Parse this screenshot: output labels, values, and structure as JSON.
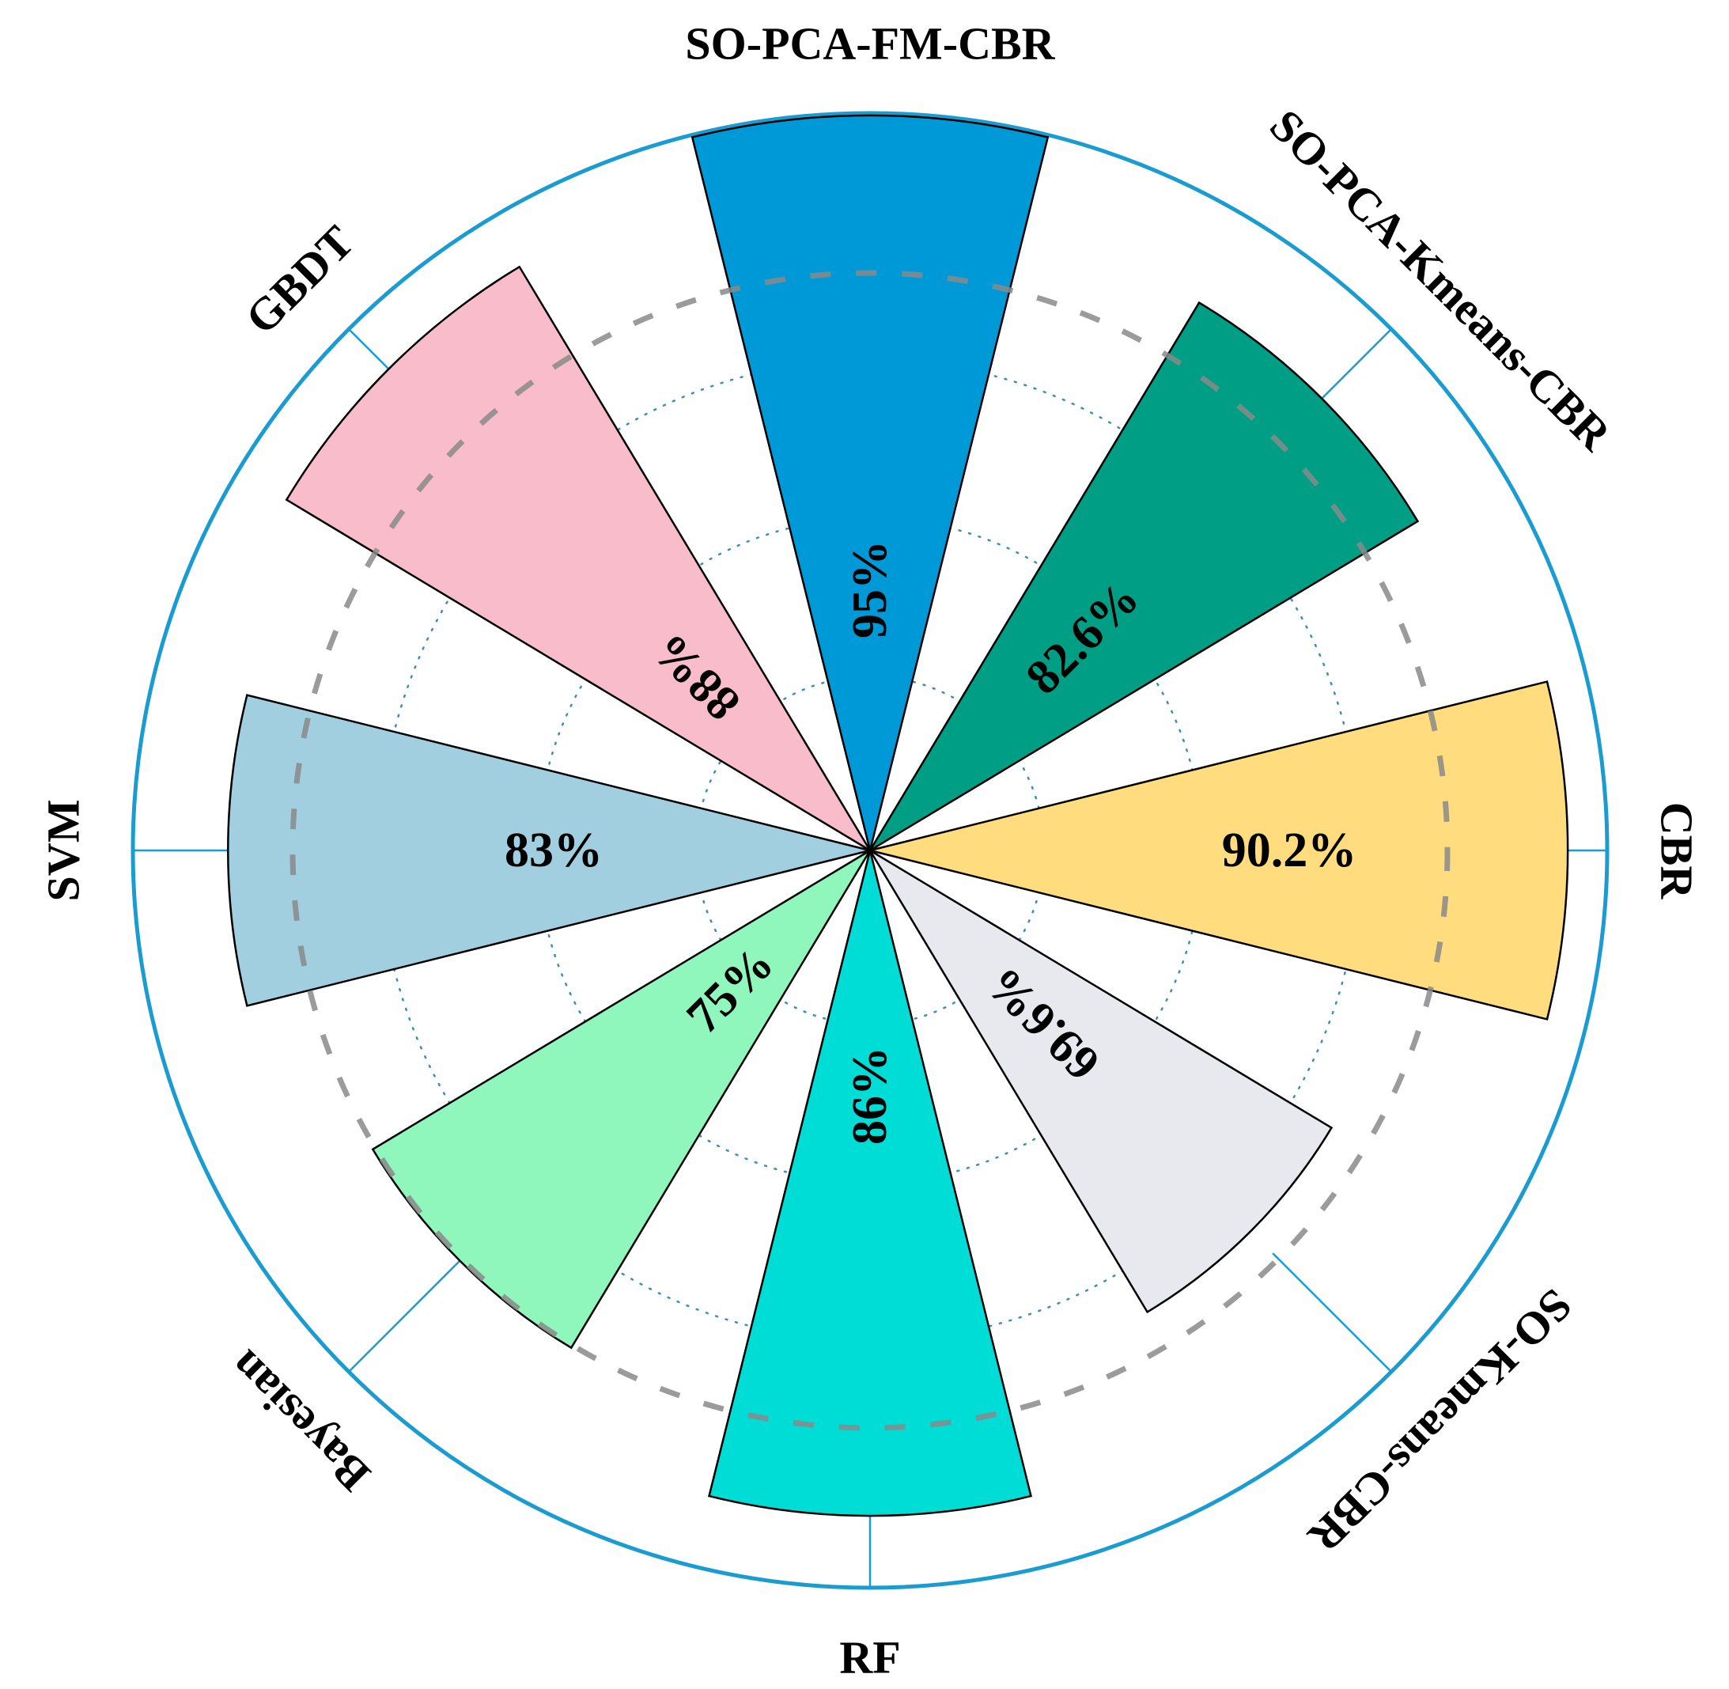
{
  "chart_data": {
    "type": "polar-bar",
    "title": "",
    "unit": "%",
    "categories": [
      "SO-PCA-FM-CBR",
      "SO-PCA-Kmeans-CBR",
      "CBR",
      "SO-Kmeans-CBR",
      "RF",
      "Bayesian",
      "SVM",
      "GBDT"
    ],
    "values": [
      95,
      82.6,
      90.2,
      69.6,
      86,
      75,
      83,
      88
    ],
    "value_labels": [
      "95%",
      "82.6%",
      "90.2%",
      "69.6%",
      "86%",
      "75%",
      "83%",
      "88%"
    ],
    "colors": [
      "#0099D8",
      "#009E84",
      "#FFDD7F",
      "#E8E9EE",
      "#00DCD6",
      "#8FF7BC",
      "#A2CFE0",
      "#F8BCCB"
    ],
    "rlim": [
      0,
      100
    ],
    "grid": true,
    "outer_ring_color": "#1B9CD0",
    "dashed_ring_color": "#8A8A8A",
    "dotted_ring_color": "#3A8FB5"
  }
}
